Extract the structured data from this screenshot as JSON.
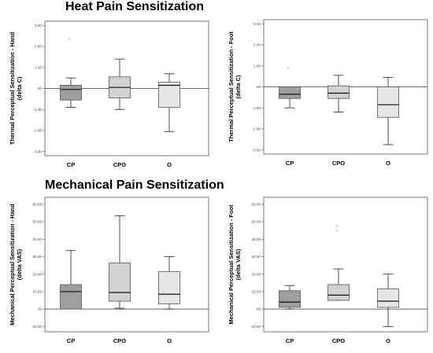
{
  "titles": {
    "heat": "Heat Pain Sensitization",
    "mechanical": "Mechanical Pain Sensitization"
  },
  "colors": {
    "CP": "#9e9e9e",
    "CPO": "#d2d2d2",
    "O": "#e6e6e6",
    "outlier": "#b5b5b5"
  },
  "chart_data": [
    {
      "type": "box",
      "ylabel": [
        "Thermal Perceptual Sensitization - Hand",
        "(delta C)"
      ],
      "categories": [
        "CP",
        "CPO",
        "O"
      ],
      "ylim": [
        -3.2,
        3.2
      ],
      "ticks": [
        3,
        2,
        1,
        0,
        -1,
        -2,
        -3
      ],
      "tick_labels": [
        "3.00",
        "2.00",
        "1.00",
        ".00",
        "-1.00",
        "-2.00",
        "-3.00"
      ],
      "boxes": [
        {
          "category": "CP",
          "min": -0.9,
          "q1": -0.55,
          "median": -0.05,
          "q3": 0.15,
          "max": 0.5,
          "outliers": [
            2.35
          ]
        },
        {
          "category": "CPO",
          "min": -1.0,
          "q1": -0.45,
          "median": 0.05,
          "q3": 0.55,
          "max": 1.4,
          "outliers": []
        },
        {
          "category": "O",
          "min": -2.05,
          "q1": -0.9,
          "median": 0.15,
          "q3": 0.3,
          "max": 0.7,
          "outliers": []
        }
      ]
    },
    {
      "type": "box",
      "ylabel": [
        "Thermal Perceptual Sensitization - Foot",
        "(delta C)"
      ],
      "categories": [
        "CP",
        "CPO",
        "O"
      ],
      "ylim": [
        -3.2,
        3.2
      ],
      "ticks": [
        3,
        2,
        1,
        0,
        -1,
        -2,
        -3
      ],
      "tick_labels": [
        "3.00",
        "2.00",
        "1.00",
        ".00",
        "-1.00",
        "-2.00",
        "-3.00"
      ],
      "boxes": [
        {
          "category": "CP",
          "min": -1.0,
          "q1": -0.55,
          "median": -0.35,
          "q3": 0.0,
          "max": 0.0,
          "outliers": [
            0.9
          ]
        },
        {
          "category": "CPO",
          "min": -1.2,
          "q1": -0.55,
          "median": -0.3,
          "q3": 0.05,
          "max": 0.55,
          "outliers": []
        },
        {
          "category": "O",
          "min": -2.75,
          "q1": -1.45,
          "median": -0.85,
          "q3": 0.0,
          "max": 0.45,
          "outliers": []
        }
      ]
    },
    {
      "type": "box",
      "ylabel": [
        "Mechanical Perceptual Sensitization - Hand",
        "(delta VAS)"
      ],
      "categories": [
        "CP",
        "CPO",
        "O"
      ],
      "ylim": [
        -13,
        64
      ],
      "ticks": [
        60,
        50,
        40,
        30,
        20,
        10,
        0,
        -10
      ],
      "tick_labels": [
        "60.00",
        "50.00",
        "40.00",
        "30.00",
        "20.00",
        "10.00",
        ".00",
        "-10.00"
      ],
      "boxes": [
        {
          "category": "CP",
          "min": 0,
          "q1": 0,
          "median": 10,
          "q3": 14,
          "max": 33.5,
          "outliers": []
        },
        {
          "category": "CPO",
          "min": 0.5,
          "q1": 4.5,
          "median": 9.5,
          "q3": 26.5,
          "max": 53.5,
          "outliers": []
        },
        {
          "category": "O",
          "min": 0,
          "q1": 3,
          "median": 8.5,
          "q3": 21.5,
          "max": 30,
          "outliers": []
        }
      ]
    },
    {
      "type": "box",
      "ylabel": [
        "Mechanical Perceptual Sensitization - Foot",
        "(delta VAS)"
      ],
      "categories": [
        "CP",
        "CPO",
        "O"
      ],
      "ylim": [
        -13,
        64
      ],
      "ticks": [
        60,
        50,
        40,
        30,
        20,
        10,
        0,
        -10
      ],
      "tick_labels": [
        "60.00",
        "50.00",
        "40.00",
        "30.00",
        "20.00",
        "10.00",
        ".00",
        "-10.00"
      ],
      "boxes": [
        {
          "category": "CP",
          "min": 0,
          "q1": 1,
          "median": 4,
          "q3": 10.5,
          "max": 13.5,
          "outliers": []
        },
        {
          "category": "CPO",
          "min": 5,
          "q1": 5,
          "median": 8,
          "q3": 14,
          "max": 23,
          "outliers": [
            47.5,
            45
          ]
        },
        {
          "category": "O",
          "min": -10,
          "q1": 1,
          "median": 4.5,
          "q3": 11.5,
          "max": 20,
          "outliers": []
        }
      ]
    }
  ]
}
